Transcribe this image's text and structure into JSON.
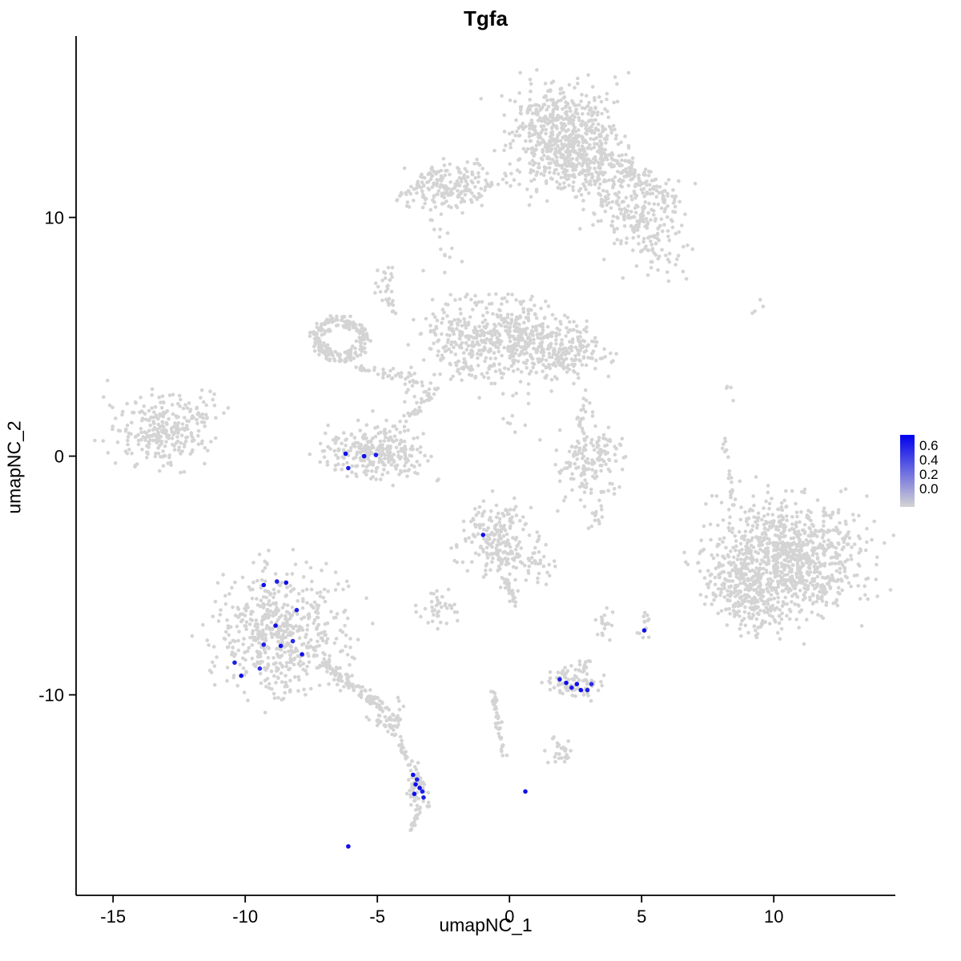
{
  "chart_data": {
    "type": "scatter",
    "title": "Tgfa",
    "xlabel": "umapNC_1",
    "ylabel": "umapNC_2",
    "xlim": [
      -16.4,
      14.6
    ],
    "ylim": [
      -18.4,
      17.6
    ],
    "x_ticks": [
      -15,
      -10,
      -5,
      0,
      5,
      10
    ],
    "y_ticks": [
      10,
      0,
      -10
    ],
    "grid": false,
    "axis_color": "#000000",
    "legend": {
      "position": "right",
      "labels": [
        "0.6",
        "0.4",
        "0.2",
        "0.0"
      ],
      "values": [
        0.6,
        0.4,
        0.2,
        0.0
      ],
      "vmax": 0.7,
      "low_color": "#D4D4D4",
      "high_color": "#0000EE"
    },
    "point_color_low": "#D4D4D4",
    "point_color_high": "#0000EE",
    "seed": 20240742,
    "background_clusters": [
      {
        "type": "gauss",
        "cx": 2.0,
        "cy": 13.4,
        "sx": 1.0,
        "sy": 1.0,
        "n": 620
      },
      {
        "type": "gauss",
        "cx": 3.1,
        "cy": 11.9,
        "sx": 0.7,
        "sy": 0.6,
        "n": 120
      },
      {
        "type": "gauss",
        "cx": 4.9,
        "cy": 10.4,
        "sx": 0.8,
        "sy": 0.9,
        "n": 200
      },
      {
        "type": "gauss",
        "cx": 5.6,
        "cy": 8.7,
        "sx": 0.5,
        "sy": 0.6,
        "n": 60
      },
      {
        "type": "line",
        "x1": 4.0,
        "y1": 12.6,
        "x2": 5.8,
        "y2": 10.8,
        "j": 0.5,
        "n": 60
      },
      {
        "type": "gauss",
        "cx": -2.2,
        "cy": 11.3,
        "sx": 0.9,
        "sy": 0.5,
        "n": 190
      },
      {
        "type": "line",
        "x1": -4.3,
        "y1": 10.9,
        "x2": -3.2,
        "y2": 11.3,
        "j": 0.25,
        "n": 12
      },
      {
        "type": "gauss",
        "cx": -2.6,
        "cy": 8.8,
        "sx": 0.3,
        "sy": 0.6,
        "n": 10
      },
      {
        "type": "gauss",
        "cx": -2.9,
        "cy": 9.9,
        "sx": 0.2,
        "sy": 0.3,
        "n": 6
      },
      {
        "type": "gauss",
        "cx": -0.9,
        "cy": 4.8,
        "sx": 1.2,
        "sy": 0.85,
        "n": 430
      },
      {
        "type": "gauss",
        "cx": 1.0,
        "cy": 4.9,
        "sx": 0.6,
        "sy": 0.6,
        "n": 120
      },
      {
        "type": "gauss",
        "cx": 2.4,
        "cy": 4.3,
        "sx": 0.7,
        "sy": 0.6,
        "n": 150
      },
      {
        "type": "ring",
        "cx": -6.4,
        "cy": 4.9,
        "r": 0.85,
        "jr": 0.35,
        "n": 210
      },
      {
        "type": "line",
        "x1": -5.6,
        "y1": 3.7,
        "x2": -3.2,
        "y2": 3.1,
        "j": 0.3,
        "n": 45
      },
      {
        "type": "gauss",
        "cx": -4.75,
        "cy": 7.2,
        "sx": 0.25,
        "sy": 0.4,
        "n": 22
      },
      {
        "type": "line",
        "x1": -4.6,
        "y1": 6.6,
        "x2": -4.3,
        "y2": 5.9,
        "j": 0.15,
        "n": 10
      },
      {
        "type": "gauss",
        "cx": -13.2,
        "cy": 1.0,
        "sx": 0.95,
        "sy": 0.75,
        "n": 270
      },
      {
        "type": "gauss",
        "cx": -11.6,
        "cy": 2.3,
        "sx": 0.4,
        "sy": 0.4,
        "n": 14
      },
      {
        "type": "gauss",
        "cx": -5.1,
        "cy": 0.2,
        "sx": 0.9,
        "sy": 0.55,
        "n": 280
      },
      {
        "type": "line",
        "x1": -4.2,
        "y1": 1.2,
        "x2": -2.7,
        "y2": 2.8,
        "j": 0.25,
        "n": 28
      },
      {
        "type": "gauss",
        "cx": -3.3,
        "cy": 2.6,
        "sx": 0.3,
        "sy": 0.3,
        "n": 14
      },
      {
        "type": "gauss",
        "cx": 0.2,
        "cy": 1.6,
        "sx": 0.5,
        "sy": 0.5,
        "n": 8
      },
      {
        "type": "gauss",
        "cx": 3.0,
        "cy": -0.1,
        "sx": 0.65,
        "sy": 0.7,
        "n": 160
      },
      {
        "type": "line",
        "x1": 2.6,
        "y1": 1.2,
        "x2": 2.9,
        "y2": 2.4,
        "j": 0.2,
        "n": 14
      },
      {
        "type": "gauss",
        "cx": 3.3,
        "cy": -2.5,
        "sx": 0.25,
        "sy": 0.35,
        "n": 16
      },
      {
        "type": "gauss",
        "cx": -0.4,
        "cy": -3.6,
        "sx": 0.7,
        "sy": 0.8,
        "n": 230
      },
      {
        "type": "line",
        "x1": -0.1,
        "y1": -4.9,
        "x2": 0.2,
        "y2": -6.3,
        "j": 0.2,
        "n": 25
      },
      {
        "type": "gauss",
        "cx": 1.1,
        "cy": -4.6,
        "sx": 0.3,
        "sy": 0.3,
        "n": 20
      },
      {
        "type": "gauss",
        "cx": -2.7,
        "cy": -6.3,
        "sx": 0.35,
        "sy": 0.4,
        "n": 40
      },
      {
        "type": "gauss",
        "cx": -8.6,
        "cy": -7.4,
        "sx": 1.15,
        "sy": 1.25,
        "n": 560
      },
      {
        "type": "line",
        "x1": -7.0,
        "y1": -8.7,
        "x2": -5.0,
        "y2": -10.4,
        "j": 0.3,
        "n": 90
      },
      {
        "type": "gauss",
        "cx": -4.6,
        "cy": -10.8,
        "sx": 0.35,
        "sy": 0.4,
        "n": 55
      },
      {
        "type": "line",
        "x1": -4.5,
        "y1": -11.2,
        "x2": -3.8,
        "y2": -12.9,
        "j": 0.15,
        "n": 28
      },
      {
        "type": "gauss",
        "cx": -3.45,
        "cy": -13.9,
        "sx": 0.22,
        "sy": 0.5,
        "n": 55
      },
      {
        "type": "line",
        "x1": -3.4,
        "y1": -14.7,
        "x2": -3.7,
        "y2": -15.7,
        "j": 0.12,
        "n": 20
      },
      {
        "type": "gauss",
        "cx": 10.6,
        "cy": -4.3,
        "sx": 1.4,
        "sy": 1.2,
        "n": 950
      },
      {
        "type": "gauss",
        "cx": 9.3,
        "cy": -6.3,
        "sx": 0.6,
        "sy": 0.6,
        "n": 120
      },
      {
        "type": "gauss",
        "cx": 8.5,
        "cy": -5.3,
        "sx": 0.5,
        "sy": 0.7,
        "n": 90
      },
      {
        "type": "line",
        "x1": 8.05,
        "y1": 0.9,
        "x2": 8.5,
        "y2": -2.2,
        "j": 0.12,
        "n": 20
      },
      {
        "type": "gauss",
        "cx": 8.3,
        "cy": 2.6,
        "sx": 0.1,
        "sy": 0.3,
        "n": 4
      },
      {
        "type": "gauss",
        "cx": 9.3,
        "cy": 6.3,
        "sx": 0.15,
        "sy": 0.25,
        "n": 4
      },
      {
        "type": "gauss",
        "cx": 2.4,
        "cy": -9.5,
        "sx": 0.5,
        "sy": 0.33,
        "n": 85
      },
      {
        "type": "gauss",
        "cx": 2.8,
        "cy": -8.7,
        "sx": 0.2,
        "sy": 0.2,
        "n": 10
      },
      {
        "type": "gauss",
        "cx": 3.6,
        "cy": -7.1,
        "sx": 0.2,
        "sy": 0.3,
        "n": 18
      },
      {
        "type": "gauss",
        "cx": 5.15,
        "cy": -7.1,
        "sx": 0.15,
        "sy": 0.3,
        "n": 12
      },
      {
        "type": "line",
        "x1": -0.6,
        "y1": -9.9,
        "x2": -0.2,
        "y2": -12.6,
        "j": 0.15,
        "n": 40
      },
      {
        "type": "gauss",
        "cx": 1.9,
        "cy": -12.4,
        "sx": 0.3,
        "sy": 0.3,
        "n": 26
      }
    ],
    "expressing_cells": [
      [
        -6.2,
        0.1,
        0.65
      ],
      [
        -6.1,
        -0.5,
        0.6
      ],
      [
        -5.5,
        0.0,
        0.65
      ],
      [
        -5.05,
        0.05,
        0.6
      ],
      [
        -1.0,
        -3.3,
        0.65
      ],
      [
        -9.3,
        -5.4,
        0.65
      ],
      [
        -8.8,
        -5.25,
        0.6
      ],
      [
        -8.45,
        -5.3,
        0.65
      ],
      [
        -8.05,
        -6.45,
        0.6
      ],
      [
        -8.85,
        -7.1,
        0.65
      ],
      [
        -9.3,
        -7.9,
        0.6
      ],
      [
        -8.65,
        -7.95,
        0.65
      ],
      [
        -8.2,
        -7.75,
        0.55
      ],
      [
        -7.85,
        -8.3,
        0.65
      ],
      [
        -10.4,
        -8.65,
        0.6
      ],
      [
        -10.15,
        -9.2,
        0.65
      ],
      [
        -9.45,
        -8.9,
        0.55
      ],
      [
        1.9,
        -9.35,
        0.6
      ],
      [
        2.15,
        -9.5,
        0.65
      ],
      [
        2.35,
        -9.7,
        0.6
      ],
      [
        2.55,
        -9.55,
        0.65
      ],
      [
        2.7,
        -9.8,
        0.65
      ],
      [
        2.95,
        -9.8,
        0.6
      ],
      [
        3.1,
        -9.55,
        0.55
      ],
      [
        5.1,
        -7.3,
        0.65
      ],
      [
        -3.65,
        -13.35,
        0.65
      ],
      [
        -3.5,
        -13.55,
        0.6
      ],
      [
        -3.55,
        -13.75,
        0.65
      ],
      [
        -3.4,
        -13.9,
        0.65
      ],
      [
        -3.3,
        -14.05,
        0.6
      ],
      [
        -3.6,
        -14.15,
        0.65
      ],
      [
        -3.25,
        -14.3,
        0.6
      ],
      [
        0.6,
        -14.05,
        0.65
      ],
      [
        -6.1,
        -16.35,
        0.65
      ]
    ]
  }
}
